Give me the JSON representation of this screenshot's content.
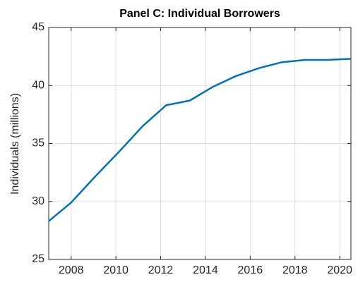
{
  "chart_data": {
    "type": "line",
    "title": "Panel C: Individual Borrowers",
    "ylabel": "Individuals (millions)",
    "x": [
      2007,
      2008,
      2009.1,
      2010.15,
      2011.2,
      2012.25,
      2013.3,
      2014.35,
      2015.35,
      2016.4,
      2017.4,
      2018.45,
      2019.45,
      2020.5
    ],
    "series": [
      {
        "name": "Individual Borrowers",
        "color": "#0072bd",
        "values": [
          28.3,
          29.9,
          32.2,
          34.3,
          36.5,
          38.3,
          38.7,
          39.9,
          40.8,
          41.5,
          42.0,
          42.2,
          42.2,
          42.3
        ]
      }
    ],
    "xlim": [
      2007,
      2020.5
    ],
    "xticks": [
      2008,
      2010,
      2012,
      2014,
      2016,
      2018,
      2020
    ],
    "ylim": [
      25,
      45
    ],
    "yticks": [
      25,
      30,
      35,
      40,
      45
    ],
    "grid": true
  }
}
